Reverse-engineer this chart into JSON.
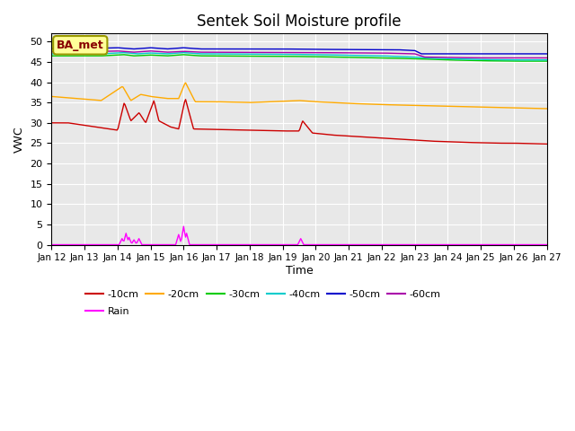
{
  "title": "Sentek Soil Moisture profile",
  "xlabel": "Time",
  "ylabel": "VWC",
  "ylim": [
    0,
    52
  ],
  "yticks": [
    0,
    5,
    10,
    15,
    20,
    25,
    30,
    35,
    40,
    45,
    50
  ],
  "xtick_labels": [
    "Jan 12",
    "Jan 13",
    "Jan 14",
    "Jan 15",
    "Jan 16",
    "Jan 17",
    "Jan 18",
    "Jan 19",
    "Jan 20",
    "Jan 21",
    "Jan 22",
    "Jan 23",
    "Jan 24",
    "Jan 25",
    "Jan 26",
    "Jan 27"
  ],
  "colors": {
    "-10cm": "#cc0000",
    "-20cm": "#ffaa00",
    "-30cm": "#00cc00",
    "-40cm": "#00cccc",
    "-50cm": "#0000cc",
    "-60cm": "#aa00aa",
    "Rain": "#ff00ff"
  },
  "annotation_box": {
    "text": "BA_met",
    "facecolor": "#ffff99",
    "edgecolor": "#999900",
    "fontsize": 9,
    "fontweight": "bold",
    "color": "#880000"
  },
  "plot_bg": "#e8e8e8",
  "fig_bg": "#ffffff",
  "grid_color": "#ffffff",
  "title_fontsize": 12,
  "legend_fontsize": 8
}
